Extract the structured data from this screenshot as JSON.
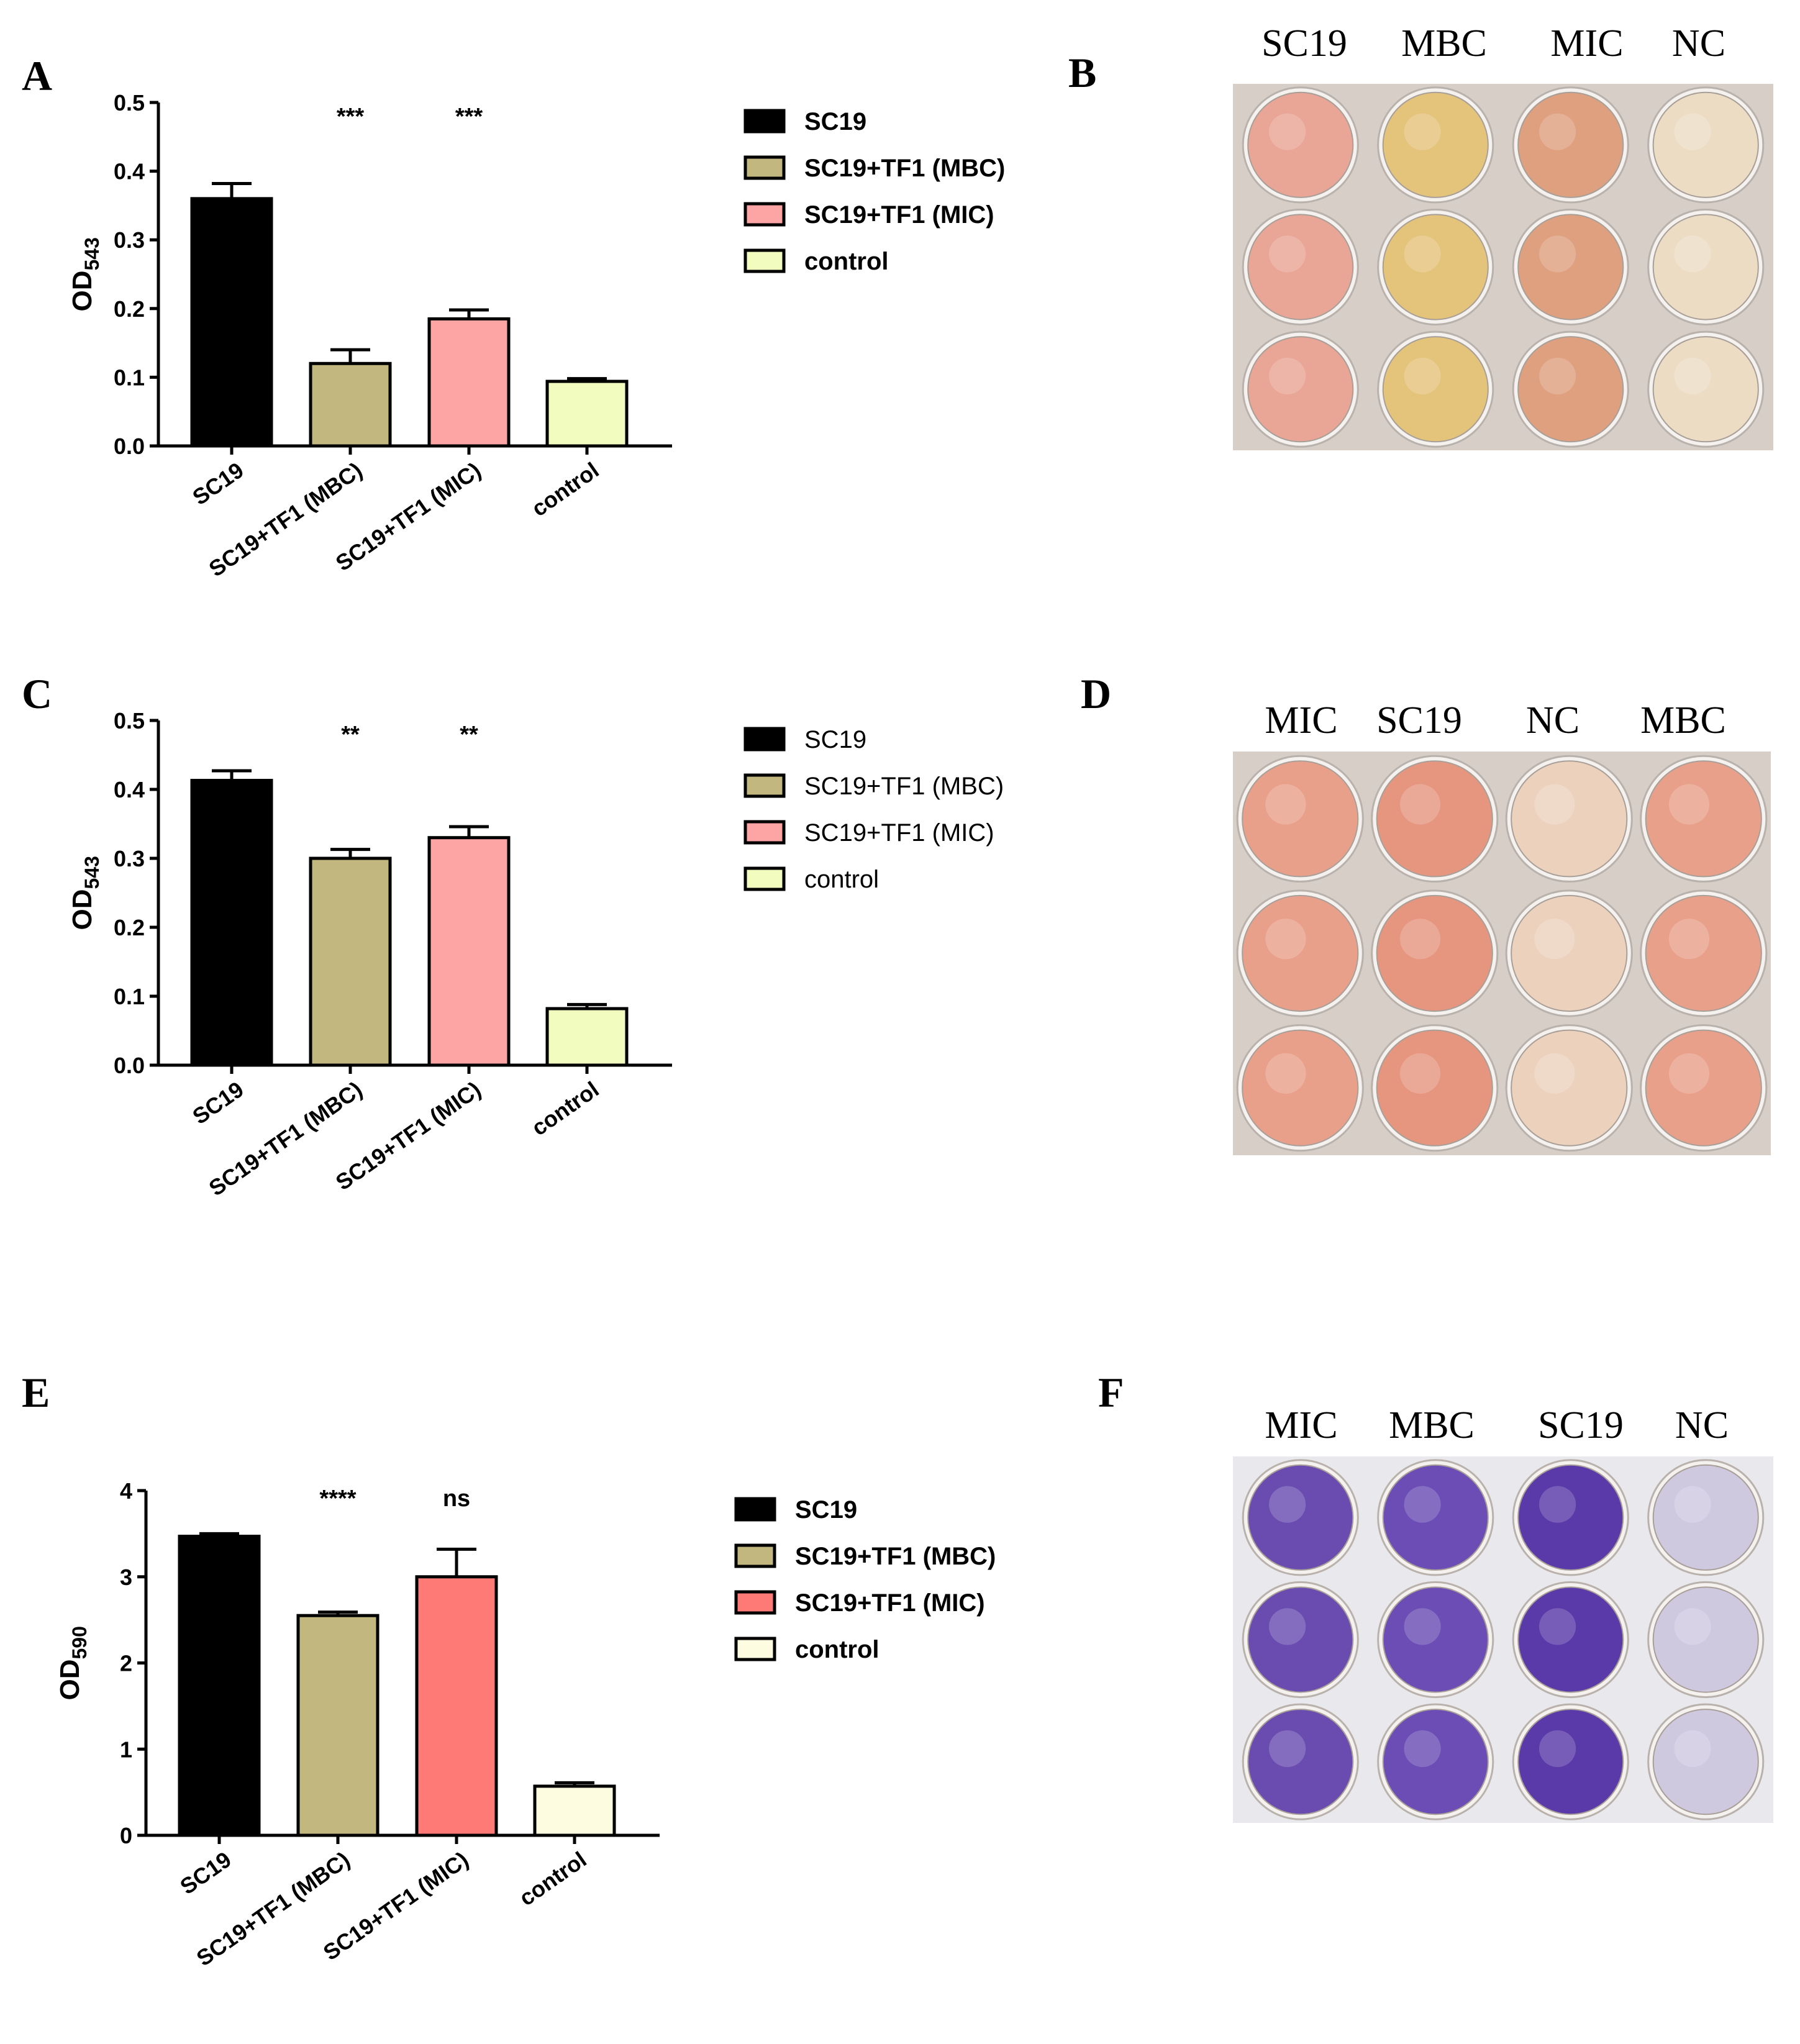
{
  "colors": {
    "SC19": "#000000",
    "MBC": "#c2b77f",
    "MIC_light": "#fda4a4",
    "MIC_strong": "#fd7a76",
    "control": "#f1fcbe",
    "control_E": "#fdfbe0"
  },
  "chart_data": [
    {
      "panel": "A",
      "type": "bar",
      "ylabel": "OD",
      "ylabel_sub": "543",
      "ylim": [
        0,
        0.5
      ],
      "yticks": [
        "0.0",
        "0.1",
        "0.2",
        "0.3",
        "0.4",
        "0.5"
      ],
      "categories": [
        "SC19",
        "SC19+TF1 (MBC)",
        "SC19+TF1 (MIC)",
        "control"
      ],
      "values": [
        0.36,
        0.12,
        0.185,
        0.094
      ],
      "errors": [
        0.022,
        0.02,
        0.013,
        0.004
      ],
      "significance": [
        "",
        "***",
        "***",
        ""
      ],
      "legend": [
        "SC19",
        "SC19+TF1 (MBC)",
        "SC19+TF1 (MIC)",
        "control"
      ],
      "legend_style": "bold",
      "mic_color": "MIC_light",
      "control_color": "control"
    },
    {
      "panel": "C",
      "type": "bar",
      "ylabel": "OD",
      "ylabel_sub": "543",
      "ylim": [
        0,
        0.5
      ],
      "yticks": [
        "0.0",
        "0.1",
        "0.2",
        "0.3",
        "0.4",
        "0.5"
      ],
      "categories": [
        "SC19",
        "SC19+TF1 (MBC)",
        "SC19+TF1 (MIC)",
        "control"
      ],
      "values": [
        0.413,
        0.3,
        0.33,
        0.082
      ],
      "errors": [
        0.014,
        0.013,
        0.016,
        0.006
      ],
      "significance": [
        "",
        "**",
        "**",
        ""
      ],
      "legend": [
        "SC19",
        "SC19+TF1 (MBC)",
        "SC19+TF1 (MIC)",
        "control"
      ],
      "legend_style": "normal",
      "mic_color": "MIC_light",
      "control_color": "control"
    },
    {
      "panel": "E",
      "type": "bar",
      "ylabel": "OD",
      "ylabel_sub": "590",
      "ylim": [
        0,
        4
      ],
      "yticks": [
        "0",
        "1",
        "2",
        "3",
        "4"
      ],
      "categories": [
        "SC19",
        "SC19+TF1 (MBC)",
        "SC19+TF1 (MIC)",
        "control"
      ],
      "values": [
        3.47,
        2.55,
        3.0,
        0.57
      ],
      "errors": [
        0.03,
        0.04,
        0.32,
        0.04
      ],
      "significance": [
        "",
        "****",
        "ns",
        ""
      ],
      "legend": [
        "SC19",
        "SC19+TF1 (MBC)",
        "SC19+TF1 (MIC)",
        "control"
      ],
      "legend_style": "bold",
      "mic_color": "MIC_strong",
      "control_color": "control_E"
    }
  ],
  "photos": [
    {
      "panel": "B",
      "labels": [
        "SC19",
        "MBC",
        "MIC",
        "NC"
      ],
      "well_colors": [
        "#e9a595",
        "#e4c37a",
        "#dea07f",
        "#ecdcc4"
      ],
      "stain": "medium"
    },
    {
      "panel": "D",
      "labels": [
        "MIC",
        "SC19",
        "NC",
        "MBC"
      ],
      "well_colors": [
        "#e9a08b",
        "#e6957f",
        "#ecd1bd",
        "#e8a08a"
      ],
      "stain": "medium"
    },
    {
      "panel": "F",
      "labels": [
        "MIC",
        "MBC",
        "SC19",
        "NC"
      ],
      "well_colors": [
        "#6a4cb0",
        "#6b4db5",
        "#5a3aa8",
        "#cfc9e0"
      ],
      "stain": "crystal"
    }
  ]
}
